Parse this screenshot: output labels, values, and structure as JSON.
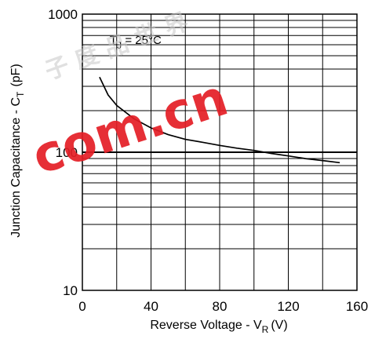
{
  "chart_data": {
    "type": "line",
    "xlabel": "Reverse Voltage - V",
    "xlabel_sub": "R",
    "xlabel_unit": "(V)",
    "ylabel": "Junction Capacitance - C",
    "ylabel_sub": "T",
    "ylabel_unit": "(pF)",
    "xlim": [
      0,
      160
    ],
    "ylim": [
      10,
      1000
    ],
    "yscale": "log",
    "grid": true,
    "x_ticks": [
      "0",
      "40",
      "80",
      "120",
      "160"
    ],
    "y_ticks": [
      "10",
      "100",
      "1000"
    ],
    "annotation": {
      "text": "T",
      "sub": "J",
      "rest": " = 25°C"
    },
    "series": [
      {
        "x": [
          10,
          15,
          20,
          30,
          40,
          50,
          60,
          70,
          80,
          90,
          100,
          110,
          120,
          130,
          140,
          150
        ],
        "values": [
          350,
          260,
          218,
          175,
          150,
          134,
          124,
          118,
          112,
          107,
          103,
          98,
          94,
          90,
          87,
          84
        ]
      }
    ]
  },
  "watermark": {
    "main": "com.cn",
    "faint": "子 度 品 世 界",
    "color": "#e41e26"
  }
}
